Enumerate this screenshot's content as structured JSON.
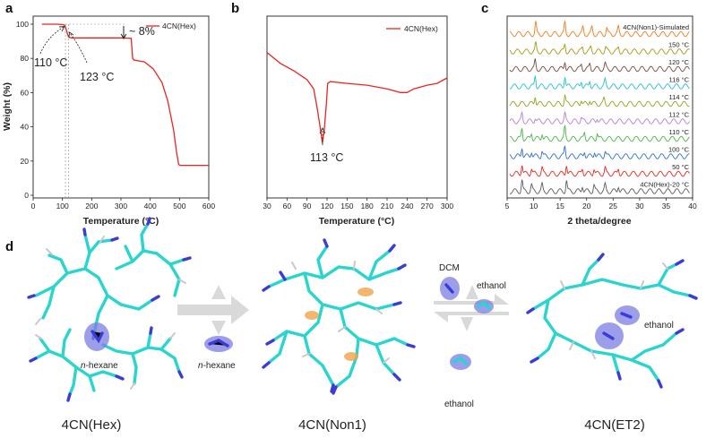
{
  "panels": {
    "a": "a",
    "b": "b",
    "c": "c",
    "d": "d"
  },
  "chart_data": [
    {
      "panel": "a",
      "type": "line",
      "xlabel": "Temperature (°C)",
      "ylabel": "Weight (%)",
      "xlim": [
        0,
        600
      ],
      "ylim": [
        0,
        100
      ],
      "xticks": [
        0,
        100,
        200,
        300,
        400,
        500,
        600
      ],
      "yticks": [
        0,
        20,
        40,
        60,
        80,
        100
      ],
      "legend": "top-right",
      "color": "#e8261f",
      "series": [
        {
          "name": "4CN(Hex)",
          "x": [
            30,
            80,
            100,
            108,
            112,
            116,
            120,
            123,
            130,
            200,
            300,
            335,
            340,
            345,
            380,
            410,
            440,
            460,
            480,
            490,
            497,
            502,
            520,
            600
          ],
          "y": [
            100,
            100,
            99.8,
            99.3,
            97.5,
            95.0,
            93.0,
            92.3,
            92.0,
            92.0,
            92.0,
            91.8,
            80.0,
            79.0,
            78.0,
            74.0,
            66.0,
            55.0,
            38.0,
            25.0,
            18.0,
            17.5,
            17.5,
            17.5
          ]
        }
      ],
      "annotations": [
        "~ 8%",
        "110 °C",
        "123 °C"
      ]
    },
    {
      "panel": "b",
      "type": "line",
      "xlabel": "Temperature (°C)",
      "ylabel": "",
      "xlim": [
        30,
        300
      ],
      "xticks": [
        30,
        60,
        90,
        120,
        150,
        180,
        210,
        240,
        270,
        300
      ],
      "legend": "top-right",
      "color": "#e8261f",
      "series": [
        {
          "name": "4CN(Hex)",
          "x": [
            30,
            50,
            70,
            90,
            100,
            105,
            110,
            113,
            116,
            119,
            121,
            125,
            150,
            180,
            210,
            230,
            240,
            250,
            270,
            285,
            300
          ],
          "y": [
            0.8,
            0.74,
            0.7,
            0.65,
            0.6,
            0.5,
            0.38,
            0.3,
            0.38,
            0.52,
            0.63,
            0.64,
            0.63,
            0.62,
            0.6,
            0.58,
            0.58,
            0.6,
            0.62,
            0.63,
            0.66
          ]
        }
      ],
      "annotations": [
        "113 °C"
      ]
    },
    {
      "panel": "c",
      "type": "line",
      "xlabel": "2 theta/degree",
      "xlim": [
        5,
        40
      ],
      "xticks": [
        5,
        10,
        15,
        20,
        25,
        30,
        35,
        40
      ],
      "traces": [
        {
          "label": "4CN(Non1)-Simulated",
          "color": "#f07c1e"
        },
        {
          "label": "150 °C",
          "color": "#a29a12"
        },
        {
          "label": "120 °C",
          "color": "#7a4a3c"
        },
        {
          "label": "116 °C",
          "color": "#24c2c8"
        },
        {
          "label": "114 °C",
          "color": "#93a51b"
        },
        {
          "label": "112 °C",
          "color": "#b57fd9"
        },
        {
          "label": "110 °C",
          "color": "#4db34a"
        },
        {
          "label": "100 °C",
          "color": "#2f6fd0"
        },
        {
          "label": "50 °C",
          "color": "#e8261f"
        },
        {
          "label": "4CN(Hex)-20 °C",
          "color": "#5a5a5a"
        }
      ]
    }
  ],
  "scheme": {
    "structures": [
      "4CN(Hex)",
      "4CN(Non1)",
      "4CN(ET2)"
    ],
    "guest_hexane": "n-hexane",
    "guest_hexane_prefix": "n",
    "guest_hexane_suffix": "-hexane",
    "guest_dcm": "DCM",
    "guest_ethanol": "ethanol"
  }
}
